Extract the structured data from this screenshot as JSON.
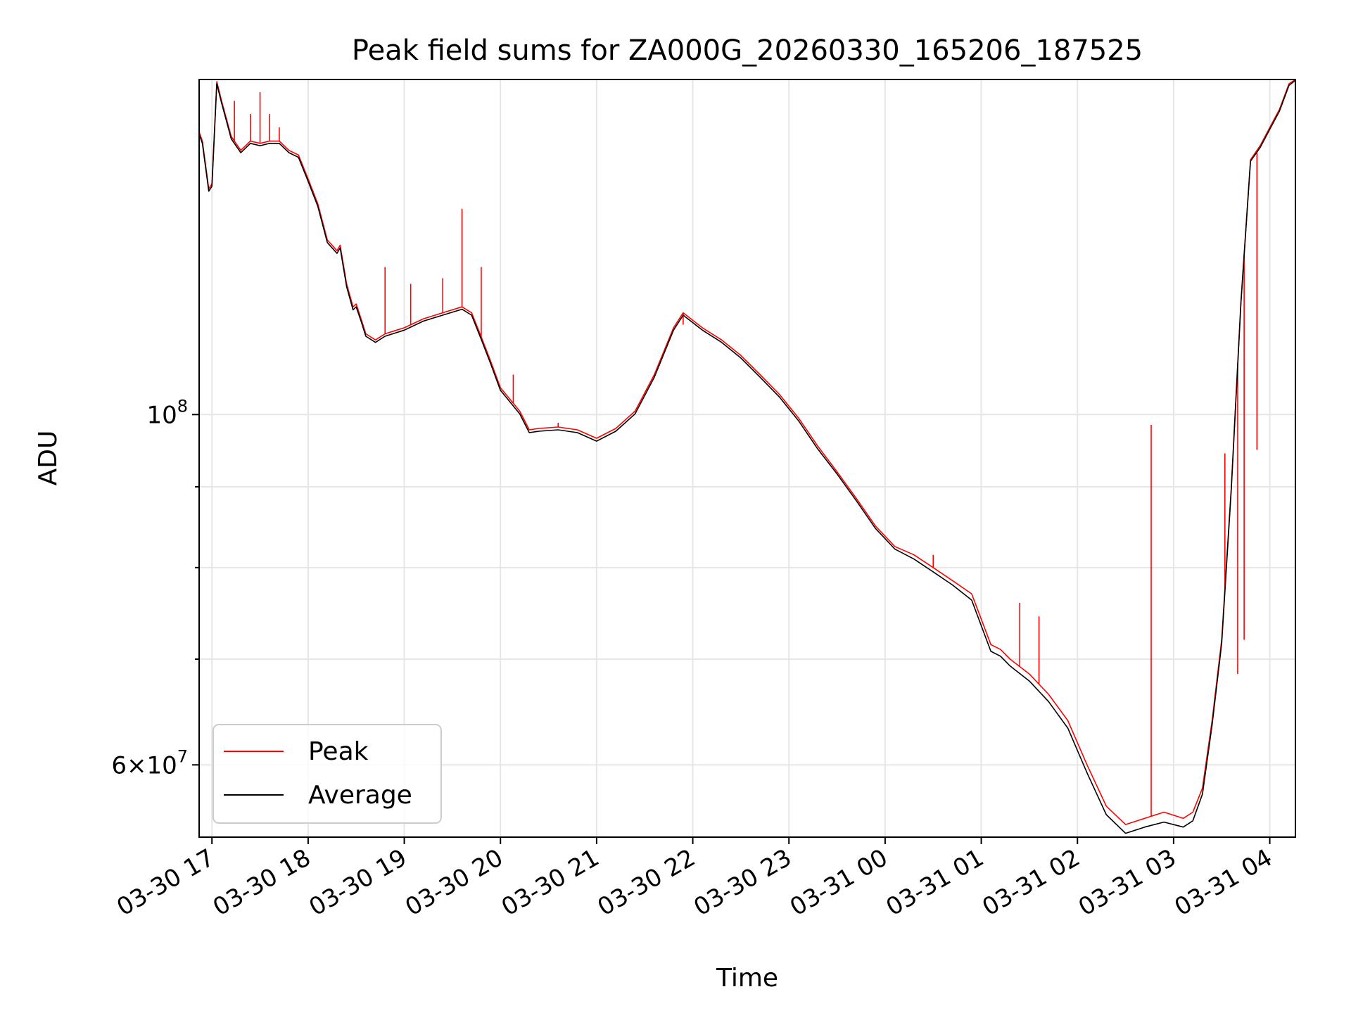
{
  "chart_data": {
    "type": "line",
    "title": "Peak field sums for ZA000G_20260330_165206_187525",
    "xlabel": "Time",
    "ylabel": "ADU",
    "y_scale": "log",
    "ylim": [
      54000000,
      163000000
    ],
    "xlim": [
      "2026-03-30 16:52",
      "2026-03-31 04:16"
    ],
    "grid": true,
    "legend_position": "lower-left",
    "x_ticks": [
      {
        "label": "03-30 17",
        "value": "2026-03-30 17:00"
      },
      {
        "label": "03-30 18",
        "value": "2026-03-30 18:00"
      },
      {
        "label": "03-30 19",
        "value": "2026-03-30 19:00"
      },
      {
        "label": "03-30 20",
        "value": "2026-03-30 20:00"
      },
      {
        "label": "03-30 21",
        "value": "2026-03-30 21:00"
      },
      {
        "label": "03-30 22",
        "value": "2026-03-30 22:00"
      },
      {
        "label": "03-30 23",
        "value": "2026-03-30 23:00"
      },
      {
        "label": "03-31 00",
        "value": "2026-03-31 00:00"
      },
      {
        "label": "03-31 01",
        "value": "2026-03-31 01:00"
      },
      {
        "label": "03-31 02",
        "value": "2026-03-31 02:00"
      },
      {
        "label": "03-31 03",
        "value": "2026-03-31 03:00"
      },
      {
        "label": "03-31 04",
        "value": "2026-03-31 04:00"
      }
    ],
    "y_major_ticks": [
      {
        "label_base": "10",
        "label_exp": "8",
        "value": 100000000
      },
      {
        "label_base": "6×10",
        "label_exp": "7",
        "value": 60000000
      }
    ],
    "y_minor_ticks": [
      70000000,
      80000000,
      90000000
    ],
    "series": [
      {
        "name": "Peak",
        "color": "#ff0000",
        "x": [
          "2026-03-30 16:52",
          "2026-03-30 16:54",
          "2026-03-30 16:58",
          "2026-03-30 17:00",
          "2026-03-30 17:03",
          "2026-03-30 17:06",
          "2026-03-30 17:09",
          "2026-03-30 17:12",
          "2026-03-30 17:18",
          "2026-03-30 17:24",
          "2026-03-30 17:30",
          "2026-03-30 17:36",
          "2026-03-30 17:42",
          "2026-03-30 17:48",
          "2026-03-30 17:54",
          "2026-03-30 18:00",
          "2026-03-30 18:06",
          "2026-03-30 18:12",
          "2026-03-30 18:18",
          "2026-03-30 18:20",
          "2026-03-30 18:24",
          "2026-03-30 18:28",
          "2026-03-30 18:30",
          "2026-03-30 18:33",
          "2026-03-30 18:36",
          "2026-03-30 18:42",
          "2026-03-30 18:48",
          "2026-03-30 18:54",
          "2026-03-30 19:00",
          "2026-03-30 19:12",
          "2026-03-30 19:24",
          "2026-03-30 19:36",
          "2026-03-30 19:42",
          "2026-03-30 19:48",
          "2026-03-30 19:54",
          "2026-03-30 20:00",
          "2026-03-30 20:12",
          "2026-03-30 20:18",
          "2026-03-30 20:24",
          "2026-03-30 20:36",
          "2026-03-30 20:48",
          "2026-03-30 21:00",
          "2026-03-30 21:12",
          "2026-03-30 21:24",
          "2026-03-30 21:36",
          "2026-03-30 21:48",
          "2026-03-30 21:54",
          "2026-03-30 22:06",
          "2026-03-30 22:18",
          "2026-03-30 22:30",
          "2026-03-30 22:42",
          "2026-03-30 22:54",
          "2026-03-30 23:06",
          "2026-03-30 23:18",
          "2026-03-30 23:30",
          "2026-03-30 23:42",
          "2026-03-30 23:54",
          "2026-03-31 00:06",
          "2026-03-31 00:18",
          "2026-03-31 00:30",
          "2026-03-31 00:42",
          "2026-03-31 00:54",
          "2026-03-31 01:06",
          "2026-03-31 01:12",
          "2026-03-31 01:18",
          "2026-03-31 01:30",
          "2026-03-31 01:42",
          "2026-03-31 01:54",
          "2026-03-31 02:06",
          "2026-03-31 02:18",
          "2026-03-31 02:30",
          "2026-03-31 02:42",
          "2026-03-31 02:54",
          "2026-03-31 03:06",
          "2026-03-31 03:12",
          "2026-03-31 03:18",
          "2026-03-31 03:24",
          "2026-03-31 03:30",
          "2026-03-31 03:36",
          "2026-03-31 03:42",
          "2026-03-31 03:48",
          "2026-03-31 03:54",
          "2026-03-31 04:00",
          "2026-03-31 04:06",
          "2026-03-31 04:12",
          "2026-03-31 04:16"
        ],
        "y": [
          151000000,
          149000000,
          139000000,
          140000000,
          162500000,
          158000000,
          154000000,
          150000000,
          147000000,
          149000000,
          148500000,
          149000000,
          149000000,
          147000000,
          146000000,
          141000000,
          136000000,
          129000000,
          127000000,
          128000000,
          121000000,
          117000000,
          117500000,
          115000000,
          112500000,
          111500000,
          112500000,
          113000000,
          113500000,
          115000000,
          116000000,
          117000000,
          116000000,
          112000000,
          108000000,
          104000000,
          100500000,
          97800000,
          98000000,
          98200000,
          97800000,
          96600000,
          98000000,
          100500000,
          106000000,
          113500000,
          116000000,
          113500000,
          111500000,
          109000000,
          106000000,
          103000000,
          99500000,
          95500000,
          92000000,
          88500000,
          85000000,
          82500000,
          81500000,
          80000000,
          78500000,
          77000000,
          71500000,
          71000000,
          70000000,
          68500000,
          66500000,
          64000000,
          60000000,
          56500000,
          55000000,
          55500000,
          56000000,
          55500000,
          56000000,
          58000000,
          64000000,
          72000000,
          90000000,
          118000000,
          145000000,
          148000000,
          152000000,
          156000000,
          162000000,
          163000000
        ],
        "spikes": [
          {
            "x": "2026-03-30 17:04",
            "y": 161000000
          },
          {
            "x": "2026-03-30 17:14",
            "y": 158000000
          },
          {
            "x": "2026-03-30 17:24",
            "y": 155000000
          },
          {
            "x": "2026-03-30 17:30",
            "y": 160000000
          },
          {
            "x": "2026-03-30 17:36",
            "y": 155000000
          },
          {
            "x": "2026-03-30 17:42",
            "y": 152000000
          },
          {
            "x": "2026-03-30 18:48",
            "y": 124000000
          },
          {
            "x": "2026-03-30 19:04",
            "y": 121000000
          },
          {
            "x": "2026-03-30 19:24",
            "y": 122000000
          },
          {
            "x": "2026-03-30 19:36",
            "y": 135000000
          },
          {
            "x": "2026-03-30 19:48",
            "y": 124000000
          },
          {
            "x": "2026-03-30 20:08",
            "y": 106000000
          },
          {
            "x": "2026-03-30 20:36",
            "y": 98800000
          },
          {
            "x": "2026-03-30 21:54",
            "y": 114000000
          },
          {
            "x": "2026-03-31 00:30",
            "y": 81500000
          },
          {
            "x": "2026-03-31 01:24",
            "y": 76000000
          },
          {
            "x": "2026-03-31 01:36",
            "y": 74500000
          },
          {
            "x": "2026-03-31 02:46",
            "y": 98500000
          },
          {
            "x": "2026-03-31 03:32",
            "y": 94500000
          },
          {
            "x": "2026-03-31 03:40",
            "y": 68500000
          },
          {
            "x": "2026-03-31 03:44",
            "y": 72000000
          },
          {
            "x": "2026-03-31 03:52",
            "y": 95000000
          }
        ]
      },
      {
        "name": "Average",
        "color": "#000000",
        "x": [
          "2026-03-30 16:52",
          "2026-03-30 16:54",
          "2026-03-30 16:58",
          "2026-03-30 17:00",
          "2026-03-30 17:03",
          "2026-03-30 17:06",
          "2026-03-30 17:09",
          "2026-03-30 17:12",
          "2026-03-30 17:18",
          "2026-03-30 17:24",
          "2026-03-30 17:30",
          "2026-03-30 17:36",
          "2026-03-30 17:42",
          "2026-03-30 17:48",
          "2026-03-30 17:54",
          "2026-03-30 18:00",
          "2026-03-30 18:06",
          "2026-03-30 18:12",
          "2026-03-30 18:18",
          "2026-03-30 18:20",
          "2026-03-30 18:24",
          "2026-03-30 18:28",
          "2026-03-30 18:30",
          "2026-03-30 18:33",
          "2026-03-30 18:36",
          "2026-03-30 18:42",
          "2026-03-30 18:48",
          "2026-03-30 18:54",
          "2026-03-30 19:00",
          "2026-03-30 19:12",
          "2026-03-30 19:24",
          "2026-03-30 19:36",
          "2026-03-30 19:42",
          "2026-03-30 19:48",
          "2026-03-30 19:54",
          "2026-03-30 20:00",
          "2026-03-30 20:12",
          "2026-03-30 20:18",
          "2026-03-30 20:24",
          "2026-03-30 20:36",
          "2026-03-30 20:48",
          "2026-03-30 21:00",
          "2026-03-30 21:12",
          "2026-03-30 21:24",
          "2026-03-30 21:36",
          "2026-03-30 21:48",
          "2026-03-30 21:54",
          "2026-03-30 22:06",
          "2026-03-30 22:18",
          "2026-03-30 22:30",
          "2026-03-30 22:42",
          "2026-03-30 22:54",
          "2026-03-30 23:06",
          "2026-03-30 23:18",
          "2026-03-30 23:30",
          "2026-03-30 23:42",
          "2026-03-30 23:54",
          "2026-03-31 00:06",
          "2026-03-31 00:18",
          "2026-03-31 00:30",
          "2026-03-31 00:42",
          "2026-03-31 00:54",
          "2026-03-31 01:06",
          "2026-03-31 01:12",
          "2026-03-31 01:18",
          "2026-03-31 01:30",
          "2026-03-31 01:42",
          "2026-03-31 01:54",
          "2026-03-31 02:06",
          "2026-03-31 02:18",
          "2026-03-31 02:30",
          "2026-03-31 02:42",
          "2026-03-31 02:54",
          "2026-03-31 03:06",
          "2026-03-31 03:12",
          "2026-03-31 03:18",
          "2026-03-31 03:24",
          "2026-03-31 03:30",
          "2026-03-31 03:36",
          "2026-03-31 03:42",
          "2026-03-31 03:48",
          "2026-03-31 03:54",
          "2026-03-31 04:00",
          "2026-03-31 04:06",
          "2026-03-31 04:12",
          "2026-03-31 04:16"
        ],
        "y": [
          150500000,
          148500000,
          138500000,
          139500000,
          162000000,
          157500000,
          153500000,
          149500000,
          146500000,
          148500000,
          148000000,
          148500000,
          148500000,
          146500000,
          145500000,
          140500000,
          135500000,
          128500000,
          126500000,
          127500000,
          120500000,
          116500000,
          117000000,
          114600000,
          112100000,
          111100000,
          112100000,
          112600000,
          113100000,
          114600000,
          115600000,
          116600000,
          115600000,
          111600000,
          107600000,
          103600000,
          100100000,
          97400000,
          97600000,
          97800000,
          97400000,
          96200000,
          97600000,
          100100000,
          105600000,
          113100000,
          115600000,
          113100000,
          111100000,
          108600000,
          105600000,
          102600000,
          99100000,
          95100000,
          91700000,
          88200000,
          84700000,
          82200000,
          81000000,
          79500000,
          78000000,
          76300000,
          70800000,
          70300000,
          69300000,
          67800000,
          65800000,
          63300000,
          59300000,
          55800000,
          54300000,
          54800000,
          55200000,
          54800000,
          55300000,
          57500000,
          63600000,
          71600000,
          89700000,
          117700000,
          144700000,
          147600000,
          151600000,
          155600000,
          161600000,
          162800000
        ]
      }
    ]
  }
}
